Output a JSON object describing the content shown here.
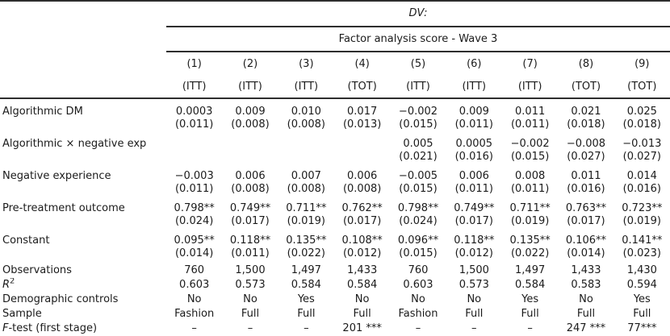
{
  "header": {
    "dv": "DV:",
    "subtitle": "Factor analysis score - Wave 3",
    "nums": [
      "(1)",
      "(2)",
      "(3)",
      "(4)",
      "(5)",
      "(6)",
      "(7)",
      "(8)",
      "(9)"
    ],
    "types": [
      "(ITT)",
      "(ITT)",
      "(ITT)",
      "(TOT)",
      "(ITT)",
      "(ITT)",
      "(ITT)",
      "(TOT)",
      "(TOT)"
    ]
  },
  "vars": [
    {
      "label": "Algorithmic DM",
      "coef": [
        "0.0003",
        "0.009",
        "0.010",
        "0.017",
        "−0.002",
        "0.009",
        "0.011",
        "0.021",
        "0.025"
      ],
      "se": [
        "(0.011)",
        "(0.008)",
        "(0.008)",
        "(0.013)",
        "(0.015)",
        "(0.011)",
        "(0.011)",
        "(0.018)",
        "(0.018)"
      ]
    },
    {
      "label": "Algorithmic × negative exp",
      "coef": [
        "",
        "",
        "",
        "",
        "0.005",
        "0.0005",
        "−0.002",
        "−0.008",
        "−0.013"
      ],
      "se": [
        "",
        "",
        "",
        "",
        "(0.021)",
        "(0.016)",
        "(0.015)",
        "(0.027)",
        "(0.027)"
      ]
    },
    {
      "label": "Negative experience",
      "coef": [
        "−0.003",
        "0.006",
        "0.007",
        "0.006",
        "−0.005",
        "0.006",
        "0.008",
        "0.011",
        "0.014"
      ],
      "se": [
        "(0.011)",
        "(0.008)",
        "(0.008)",
        "(0.008)",
        "(0.015)",
        "(0.011)",
        "(0.011)",
        "(0.016)",
        "(0.016)"
      ]
    },
    {
      "label": "Pre-treatment outcome",
      "coef": [
        "0.798**",
        "0.749**",
        "0.711**",
        "0.762**",
        "0.798**",
        "0.749**",
        "0.711**",
        "0.763**",
        "0.723**"
      ],
      "se": [
        "(0.024)",
        "(0.017)",
        "(0.019)",
        "(0.017)",
        "(0.024)",
        "(0.017)",
        "(0.019)",
        "(0.017)",
        "(0.019)"
      ]
    },
    {
      "label": "Constant",
      "coef": [
        "0.095**",
        "0.118**",
        "0.135**",
        "0.108**",
        "0.096**",
        "0.118**",
        "0.135**",
        "0.106**",
        "0.141**"
      ],
      "se": [
        "(0.014)",
        "(0.011)",
        "(0.022)",
        "(0.012)",
        "(0.015)",
        "(0.012)",
        "(0.022)",
        "(0.014)",
        "(0.023)"
      ]
    }
  ],
  "stats": [
    {
      "label_it": "",
      "label": "Observations",
      "label_sup": "",
      "values": [
        "760",
        "1,500",
        "1,497",
        "1,433",
        "760",
        "1,500",
        "1,497",
        "1,433",
        "1,430"
      ]
    },
    {
      "label_it": "R",
      "label": "",
      "label_sup": "2",
      "values": [
        "0.603",
        "0.573",
        "0.584",
        "0.584",
        "0.603",
        "0.573",
        "0.584",
        "0.583",
        "0.594"
      ]
    },
    {
      "label_it": "",
      "label": "Demographic controls",
      "label_sup": "",
      "values": [
        "No",
        "No",
        "Yes",
        "No",
        "No",
        "No",
        "Yes",
        "No",
        "Yes"
      ]
    },
    {
      "label_it": "",
      "label": "Sample",
      "label_sup": "",
      "values": [
        "Fashion",
        "Full",
        "Full",
        "Full",
        "Fashion",
        "Full",
        "Full",
        "Full",
        "Full"
      ]
    },
    {
      "label_it": "F",
      "label": "-test (first stage)",
      "label_sup": "",
      "values": [
        "–",
        "–",
        "–",
        "201 ***",
        "–",
        "–",
        "–",
        "247 ***",
        "77***"
      ]
    }
  ]
}
